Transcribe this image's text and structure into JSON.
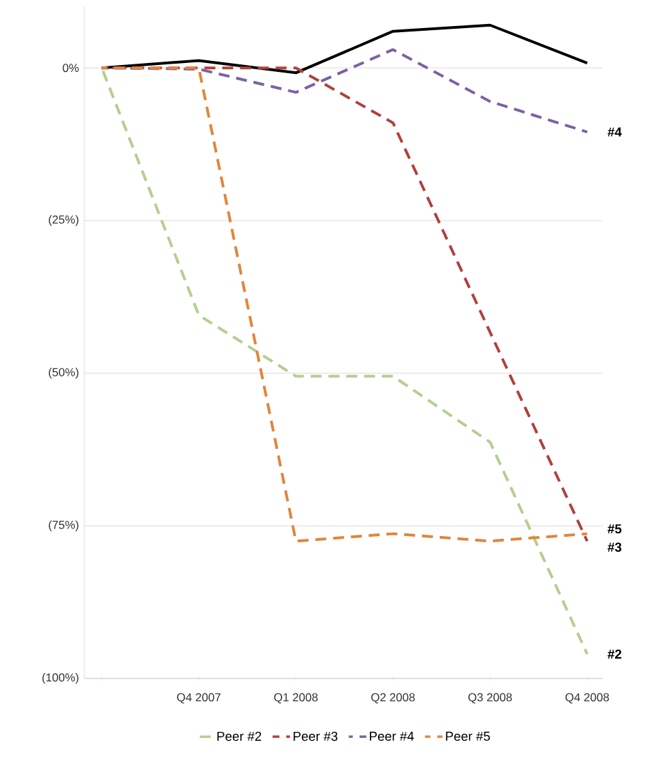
{
  "chart_data": {
    "type": "line",
    "categories": [
      null,
      "Q4 2007",
      "Q1 2008",
      "Q2 2008",
      "Q3 2008",
      "Q4 2008"
    ],
    "ylim": [
      -100,
      10
    ],
    "yticks": [
      {
        "value": 0,
        "label": "0%"
      },
      {
        "value": -25,
        "label": "(25%)"
      },
      {
        "value": -50,
        "label": "(50%)"
      },
      {
        "value": -75,
        "label": "(75%)"
      },
      {
        "value": -100,
        "label": "(100%)"
      }
    ],
    "series": [
      {
        "color": "#000000",
        "line_style": "solid",
        "values": [
          0,
          1.2,
          -0.8,
          6,
          7,
          0.8
        ]
      },
      {
        "name": "Peer #2",
        "color": "#b3cf8f",
        "line_style": "dashed",
        "values": [
          0,
          -40.5,
          -50.5,
          -50.5,
          -61.3,
          -96
        ]
      },
      {
        "name": "Peer #3",
        "color": "#b0413e",
        "line_style": "dashed",
        "values": [
          0,
          0,
          0,
          -9,
          -43.3,
          -77.5
        ]
      },
      {
        "name": "Peer #4",
        "color": "#7b62a0",
        "line_style": "dashed",
        "values": [
          0,
          -0.2,
          -4,
          3,
          -5.5,
          -10.5
        ]
      },
      {
        "name": "Peer #5",
        "color": "#e2853a",
        "line_style": "dashed",
        "values": [
          0,
          0,
          -77.5,
          -76.3,
          -77.5,
          -76.3
        ]
      }
    ],
    "annotations": [
      "#4",
      "#5",
      "#3",
      "#2"
    ],
    "grid": "y",
    "legend": "bottom",
    "marker": "none"
  }
}
